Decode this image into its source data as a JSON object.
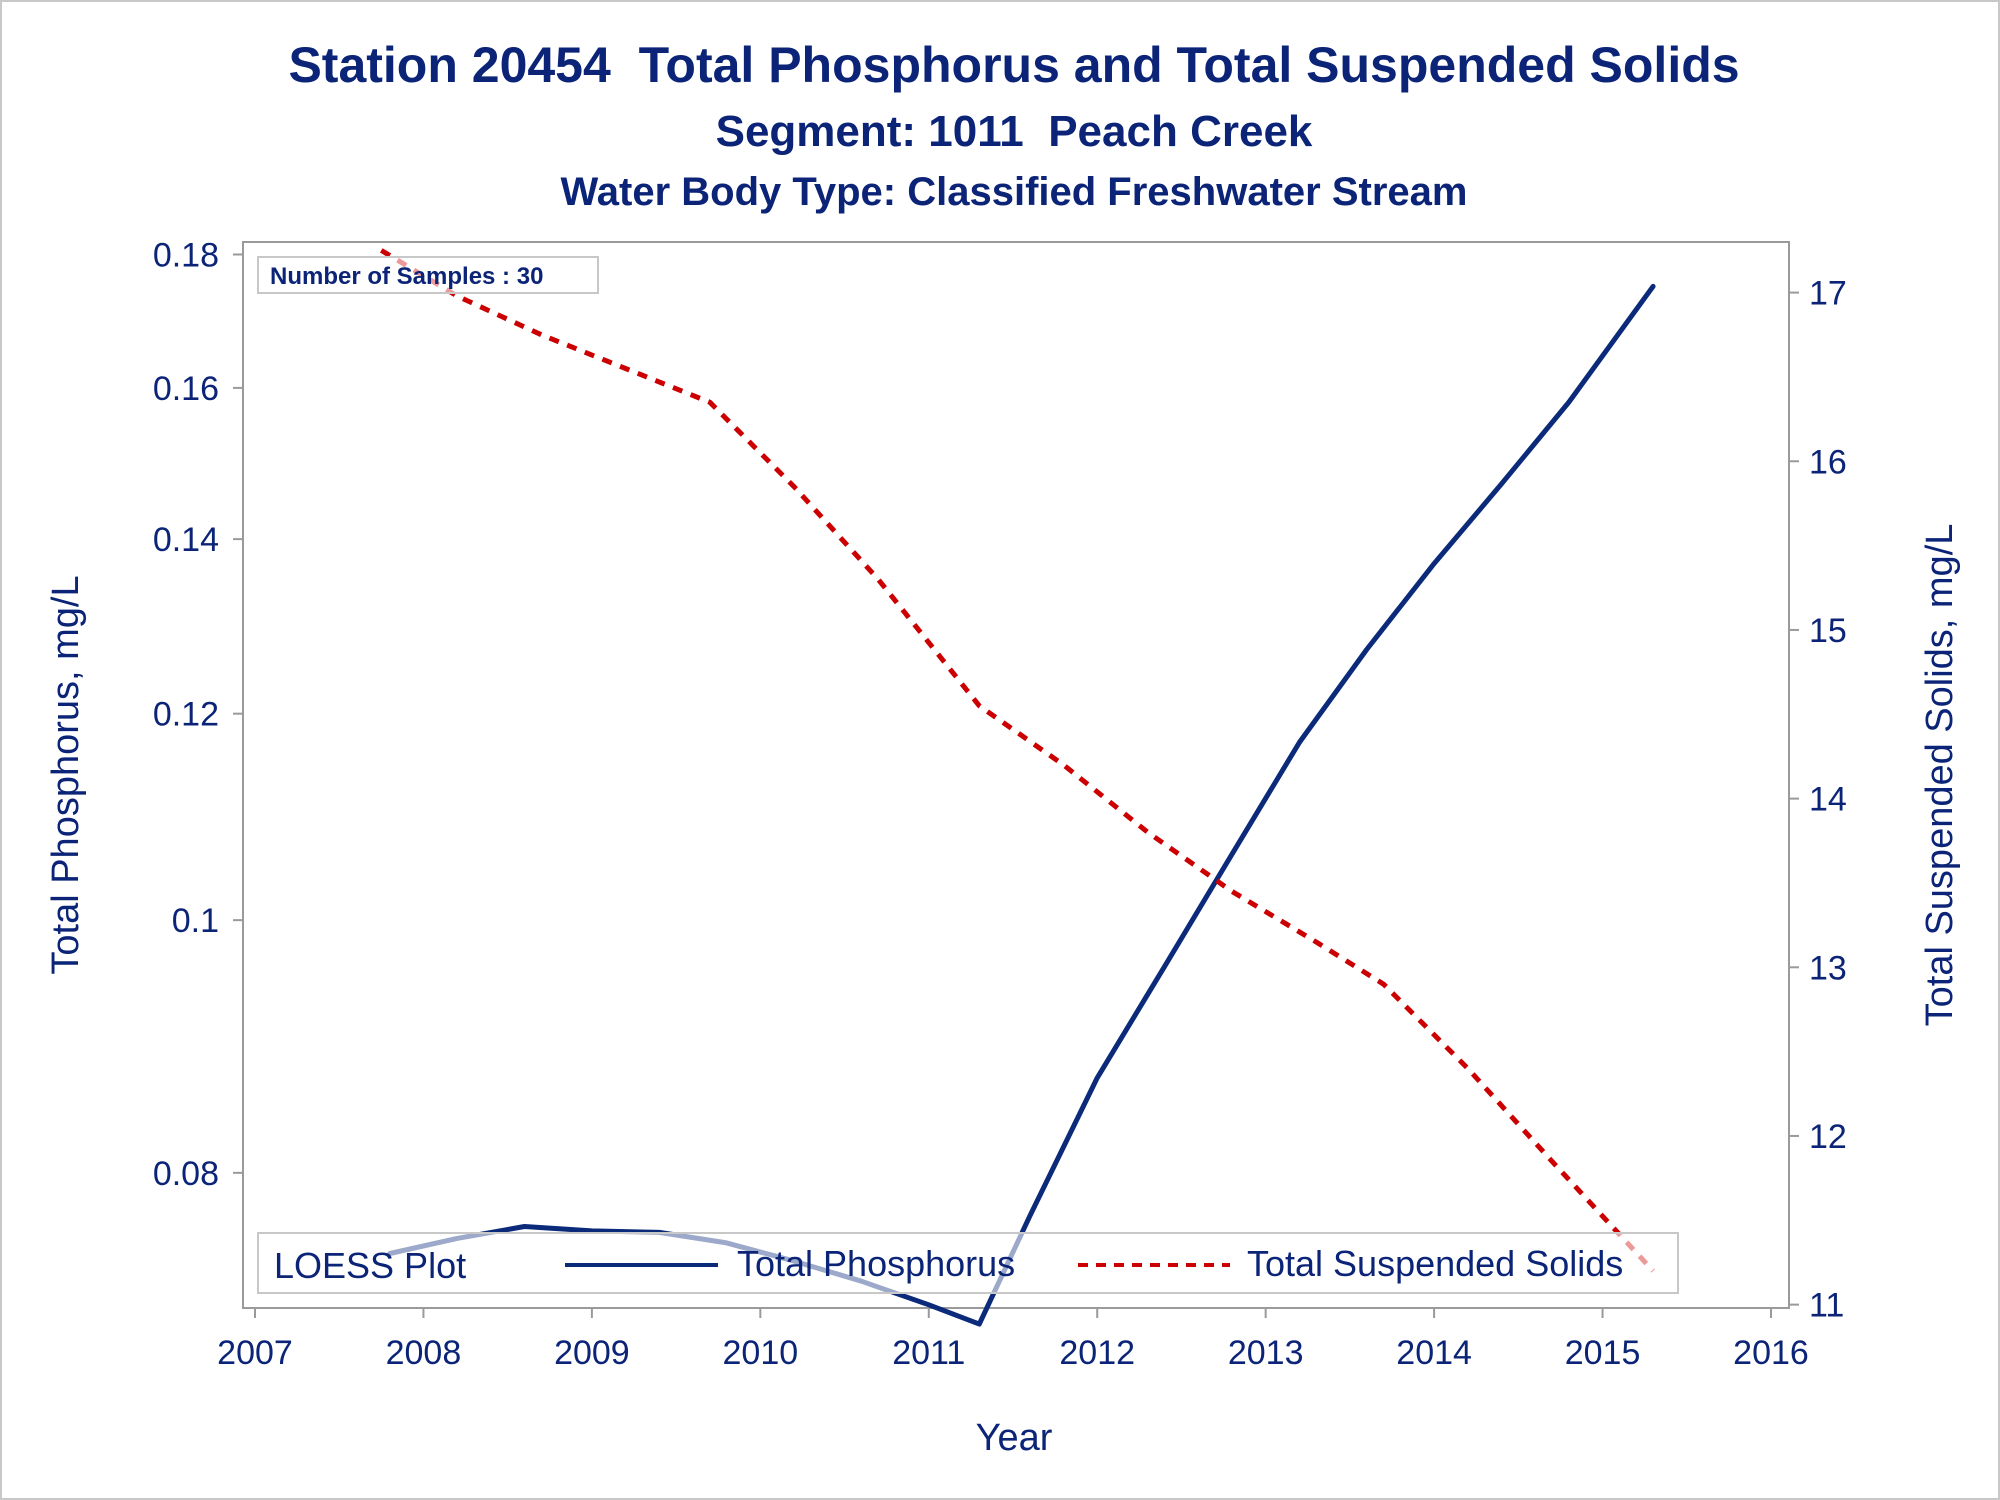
{
  "chart_data": {
    "type": "line",
    "title": "Station 20454  Total Phosphorus and Total Suspended Solids",
    "subtitle": "Segment: 1011  Peach Creek",
    "subtitle2": "Water Body Type: Classified Freshwater Stream",
    "xlabel": "Year",
    "ylabel": "Total Phosphorus, mg/L",
    "y2label": "Total Suspended Solids, mg/L",
    "xlim": [
      2007,
      2016
    ],
    "ylim": [
      0.071,
      0.182
    ],
    "y_scale": "log",
    "y2lim": [
      10.98,
      17.3
    ],
    "x_ticks": [
      "2007",
      "2008",
      "2009",
      "2010",
      "2011",
      "2012",
      "2013",
      "2014",
      "2015",
      "2016"
    ],
    "y_ticks": [
      "0.08",
      "0.1",
      "0.12",
      "0.14",
      "0.16",
      "0.18"
    ],
    "y2_ticks": [
      "11",
      "12",
      "13",
      "14",
      "15",
      "16",
      "17"
    ],
    "annotation": "Number of Samples : 30",
    "legend": {
      "title": "LOESS Plot",
      "placement": "bottom-inside",
      "entries": [
        "Total Phosphorus",
        "Total Suspended Solids"
      ]
    },
    "grid": false,
    "series": [
      {
        "name": "Total Phosphorus",
        "axis": "left",
        "color": "#0b2a7a",
        "style": "solid",
        "x": [
          2007.8,
          2008.2,
          2008.6,
          2009.0,
          2009.4,
          2009.8,
          2010.2,
          2010.6,
          2011.0,
          2011.3,
          2011.6,
          2012.0,
          2012.4,
          2012.8,
          2013.2,
          2013.6,
          2014.0,
          2014.4,
          2014.8,
          2015.3
        ],
        "values": [
          0.0745,
          0.0755,
          0.0763,
          0.076,
          0.0759,
          0.0752,
          0.074,
          0.0727,
          0.0712,
          0.07,
          0.077,
          0.087,
          0.096,
          0.106,
          0.117,
          0.127,
          0.137,
          0.147,
          0.158,
          0.175
        ]
      },
      {
        "name": "Total Suspended Solids",
        "axis": "right",
        "color": "#cc0000",
        "style": "dashed",
        "x": [
          2007.75,
          2008.2,
          2008.7,
          2009.2,
          2009.7,
          2010.2,
          2010.7,
          2011.3,
          2011.8,
          2012.3,
          2012.8,
          2013.3,
          2013.7,
          2014.2,
          2014.7,
          2015.3
        ],
        "values": [
          17.25,
          16.98,
          16.75,
          16.55,
          16.35,
          15.85,
          15.3,
          14.55,
          14.2,
          13.8,
          13.45,
          13.15,
          12.9,
          12.4,
          11.85,
          11.2
        ]
      }
    ]
  }
}
